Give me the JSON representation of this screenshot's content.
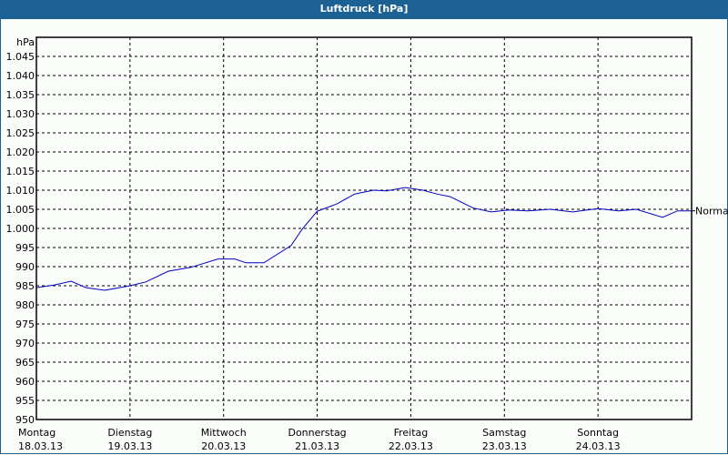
{
  "window": {
    "title": "Luftdruck [hPa]"
  },
  "chart_data": {
    "type": "line",
    "title": "Luftdruck [hPa]",
    "ylabel": "hPa",
    "xlabel": "",
    "ylim": [
      950,
      1045
    ],
    "y_ticks": [
      "950",
      "955",
      "960",
      "965",
      "970",
      "975",
      "980",
      "985",
      "990",
      "995",
      "1.000",
      "1.005",
      "1.010",
      "1.015",
      "1.020",
      "1.025",
      "1.030",
      "1.035",
      "1.040",
      "1.045"
    ],
    "x_ticks": [
      {
        "day": "Montag",
        "date": "18.03.13"
      },
      {
        "day": "Dienstag",
        "date": "19.03.13"
      },
      {
        "day": "Mittwoch",
        "date": "20.03.13"
      },
      {
        "day": "Donnerstag",
        "date": "21.03.13"
      },
      {
        "day": "Freitag",
        "date": "22.03.13"
      },
      {
        "day": "Samstag",
        "date": "23.03.13"
      },
      {
        "day": "Sonntag",
        "date": "24.03.13"
      }
    ],
    "grid": true,
    "annotation": {
      "label": "Normal",
      "value": 1004.6
    },
    "series": [
      {
        "name": "Luftdruck",
        "color": "#0000c0",
        "x_days": [
          0,
          0.19,
          0.37,
          0.53,
          0.73,
          1.0,
          1.17,
          1.41,
          1.65,
          1.94,
          2.12,
          2.24,
          2.43,
          2.72,
          2.84,
          3.0,
          3.21,
          3.4,
          3.6,
          3.74,
          3.94,
          4.13,
          4.28,
          4.42,
          4.67,
          4.86,
          5.05,
          5.25,
          5.49,
          5.73,
          6.0,
          6.22,
          6.41,
          6.69,
          6.85,
          7.0
        ],
        "values": [
          984.5,
          985.2,
          986.2,
          984.5,
          983.8,
          985.0,
          986.0,
          988.8,
          989.8,
          992.0,
          992.0,
          991.0,
          991.0,
          995.5,
          999.8,
          1004.5,
          1006.4,
          1009.0,
          1010.0,
          1009.8,
          1010.7,
          1010.0,
          1009.0,
          1008.3,
          1005.3,
          1004.3,
          1004.8,
          1004.6,
          1005.0,
          1004.3,
          1005.2,
          1004.6,
          1005.0,
          1002.9,
          1004.6,
          1004.6
        ]
      }
    ]
  }
}
